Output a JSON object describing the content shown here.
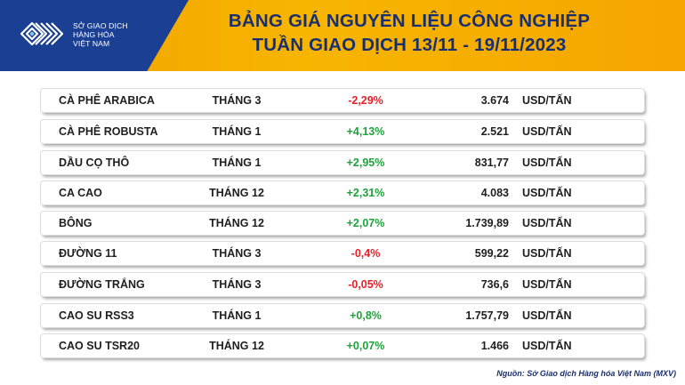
{
  "logo": {
    "line1": "SỞ GIAO DỊCH",
    "line2": "HÀNG HÓA",
    "line3": "VIỆT NAM"
  },
  "title": {
    "line1": "BẢNG GIÁ NGUYÊN LIỆU CÔNG NGHIỆP",
    "line2": "TUẦN GIAO DỊCH 13/11 - 19/11/2023"
  },
  "colors": {
    "header_yellow": "#f7b500",
    "logo_blue": "#1b3f93",
    "title_navy": "#1a2f6e",
    "negative": "#e8202a",
    "positive": "#1ea33b"
  },
  "rows": [
    {
      "name": "CÀ PHÊ ARABICA",
      "month": "THÁNG 3",
      "change": "-2,29%",
      "direction": "down",
      "price": "3.674",
      "unit": "USD/TẤN"
    },
    {
      "name": "CÀ PHÊ ROBUSTA",
      "month": "THÁNG 1",
      "change": "+4,13%",
      "direction": "up",
      "price": "2.521",
      "unit": "USD/TẤN"
    },
    {
      "name": "DẦU CỌ THÔ",
      "month": "THÁNG 1",
      "change": "+2,95%",
      "direction": "up",
      "price": "831,77",
      "unit": "USD/TẤN"
    },
    {
      "name": "CA CAO",
      "month": "THÁNG 12",
      "change": "+2,31%",
      "direction": "up",
      "price": "4.083",
      "unit": "USD/TẤN"
    },
    {
      "name": "BÔNG",
      "month": "THÁNG 12",
      "change": "+2,07%",
      "direction": "up",
      "price": "1.739,89",
      "unit": "USD/TẤN"
    },
    {
      "name": "ĐƯỜNG 11",
      "month": "THÁNG 3",
      "change": "-0,4%",
      "direction": "down",
      "price": "599,22",
      "unit": "USD/TẤN"
    },
    {
      "name": "ĐƯỜNG TRẮNG",
      "month": "THÁNG 3",
      "change": "-0,05%",
      "direction": "down",
      "price": "736,6",
      "unit": "USD/TẤN"
    },
    {
      "name": "CAO SU RSS3",
      "month": "THÁNG 1",
      "change": "+0,8%",
      "direction": "up",
      "price": "1.757,79",
      "unit": "USD/TẤN"
    },
    {
      "name": "CAO SU TSR20",
      "month": "THÁNG 12",
      "change": "+0,07%",
      "direction": "up",
      "price": "1.466",
      "unit": "USD/TẤN"
    }
  ],
  "source": "Nguồn: Sở Giao dịch Hàng hóa Việt Nam (MXV)"
}
